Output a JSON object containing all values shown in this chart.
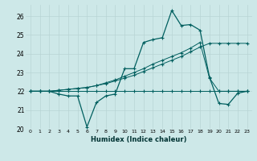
{
  "xlabel": "Humidex (Indice chaleur)",
  "bg_color": "#cde8e8",
  "grid_color": "#b8d4d4",
  "line_color": "#005f5f",
  "xlim": [
    -0.5,
    23.5
  ],
  "ylim": [
    20.0,
    26.6
  ],
  "xticks": [
    0,
    1,
    2,
    3,
    4,
    5,
    6,
    7,
    8,
    9,
    10,
    11,
    12,
    13,
    14,
    15,
    16,
    17,
    18,
    19,
    20,
    21,
    22,
    23
  ],
  "yticks": [
    20,
    21,
    22,
    23,
    24,
    25,
    26
  ],
  "series1": [
    22.0,
    22.0,
    22.0,
    22.0,
    22.0,
    22.0,
    22.0,
    22.0,
    22.0,
    22.0,
    22.0,
    22.0,
    22.0,
    22.0,
    22.0,
    22.0,
    22.0,
    22.0,
    22.0,
    22.0,
    22.0,
    22.0,
    22.0,
    22.0
  ],
  "series2": [
    22.0,
    22.0,
    22.0,
    22.05,
    22.1,
    22.15,
    22.2,
    22.3,
    22.4,
    22.55,
    22.7,
    22.85,
    23.05,
    23.25,
    23.45,
    23.65,
    23.85,
    24.1,
    24.35,
    24.55,
    24.55,
    24.55,
    24.55,
    24.55
  ],
  "series3": [
    22.0,
    22.0,
    22.0,
    22.05,
    22.1,
    22.15,
    22.2,
    22.3,
    22.45,
    22.6,
    22.8,
    23.0,
    23.2,
    23.45,
    23.65,
    23.85,
    24.05,
    24.3,
    24.6,
    22.7,
    22.0,
    22.0,
    22.0,
    22.0
  ],
  "series4": [
    22.0,
    22.0,
    22.0,
    21.85,
    21.75,
    21.75,
    20.1,
    21.4,
    21.75,
    21.85,
    23.2,
    23.2,
    24.6,
    24.75,
    24.85,
    26.3,
    25.5,
    25.55,
    25.25,
    22.75,
    21.35,
    21.3,
    21.9,
    22.0
  ]
}
